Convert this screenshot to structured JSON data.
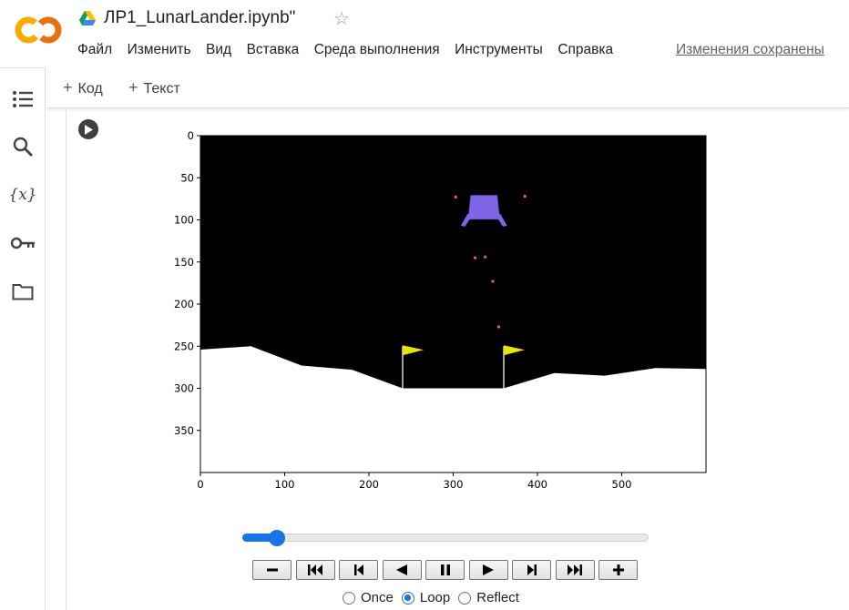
{
  "header": {
    "title": "ЛР1_LunarLander.ipynb\"",
    "menu": [
      "Файл",
      "Изменить",
      "Вид",
      "Вставка",
      "Среда выполнения",
      "Инструменты",
      "Справка"
    ],
    "save_status": "Изменения сохранены"
  },
  "sidebar": {
    "items": [
      "toc-icon",
      "search-icon",
      "variables-icon",
      "key-icon",
      "folder-icon"
    ],
    "variables_glyph": "{x}"
  },
  "toolbar": {
    "add_code": "Код",
    "add_text": "Текст"
  },
  "chart_data": {
    "type": "image",
    "xlabel": "",
    "ylabel": "",
    "xlim": [
      0,
      600
    ],
    "ylim": [
      400,
      0
    ],
    "x_ticks": [
      0,
      100,
      200,
      300,
      400,
      500
    ],
    "y_ticks": [
      0,
      50,
      100,
      150,
      200,
      250,
      300,
      350
    ],
    "terrain": [
      [
        0,
        254
      ],
      [
        60,
        250
      ],
      [
        120,
        273
      ],
      [
        180,
        278
      ],
      [
        240,
        300
      ],
      [
        360,
        300
      ],
      [
        420,
        282
      ],
      [
        480,
        285
      ],
      [
        540,
        276
      ],
      [
        600,
        277
      ]
    ],
    "flags_x": [
      240,
      360
    ],
    "flag_top_y": 250,
    "flag_base_y": 300,
    "lander_body": [
      [
        321,
        71
      ],
      [
        352,
        71
      ],
      [
        355,
        99
      ],
      [
        318,
        99
      ]
    ],
    "particles": [
      [
        303,
        73
      ],
      [
        385,
        72
      ],
      [
        326,
        145
      ],
      [
        338,
        144
      ],
      [
        347,
        173
      ],
      [
        354,
        227
      ]
    ],
    "colors": {
      "sky": "#000000",
      "ground": "#ffffff",
      "lander": "#8066e6",
      "flag": "#e6e600",
      "particle": "#ff5a5a"
    }
  },
  "animation": {
    "progress": 0.05,
    "buttons": [
      "slower",
      "first-frame",
      "previous-frame",
      "play-reverse",
      "pause",
      "play",
      "next-frame",
      "last-frame",
      "faster"
    ],
    "modes": [
      {
        "label": "Once",
        "checked": false
      },
      {
        "label": "Loop",
        "checked": true
      },
      {
        "label": "Reflect",
        "checked": false
      }
    ]
  }
}
